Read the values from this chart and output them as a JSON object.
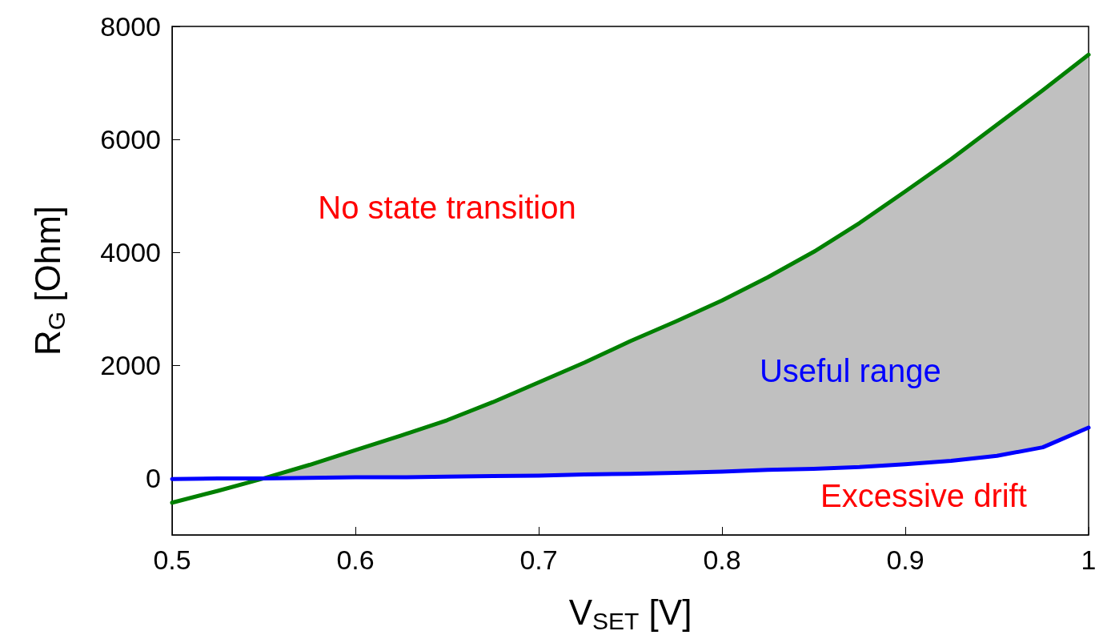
{
  "chart_data": {
    "type": "line",
    "xlabel": "V$_{SET}$ [V]",
    "ylabel": "R$_{G}$ [Ohm]",
    "x": [
      0.5,
      0.525,
      0.55,
      0.575,
      0.6,
      0.625,
      0.65,
      0.675,
      0.7,
      0.725,
      0.75,
      0.775,
      0.8,
      0.825,
      0.85,
      0.875,
      0.9,
      0.925,
      0.95,
      0.975,
      1.0
    ],
    "series": [
      {
        "color": "#008000",
        "values": [
          -430,
          -220,
          0,
          240,
          500,
          760,
          1030,
          1350,
          1700,
          2050,
          2430,
          2780,
          3150,
          3560,
          4010,
          4520,
          5080,
          5650,
          6260,
          6870,
          7500
        ],
        "lower": [
          null,
          null,
          0,
          10,
          20,
          20,
          30,
          40,
          50,
          70,
          80,
          100,
          120,
          150,
          170,
          200,
          250,
          310,
          400,
          550,
          900
        ],
        "upper": [
          null,
          null,
          0,
          240,
          500,
          760,
          1030,
          1350,
          1700,
          2050,
          2430,
          2780,
          3150,
          3560,
          4010,
          4520,
          5080,
          5650,
          6260,
          6870,
          7500
        ]
      },
      {
        "color": "#0000ff",
        "values": [
          -10,
          0,
          0,
          10,
          20,
          20,
          30,
          40,
          50,
          70,
          80,
          100,
          120,
          150,
          170,
          200,
          250,
          310,
          400,
          550,
          900
        ]
      }
    ],
    "xlim": [
      0.5,
      1
    ],
    "xticks": [
      0.5,
      0.6,
      0.7,
      0.8,
      0.9,
      1
    ],
    "ylim": [
      -1000,
      8000
    ],
    "yticks": [
      0,
      2000,
      4000,
      6000,
      8000
    ],
    "grid": false,
    "marker": "none",
    "line_style": "solid",
    "annotations": [
      "No state transition",
      "Useful range",
      "Excessive drift"
    ]
  }
}
